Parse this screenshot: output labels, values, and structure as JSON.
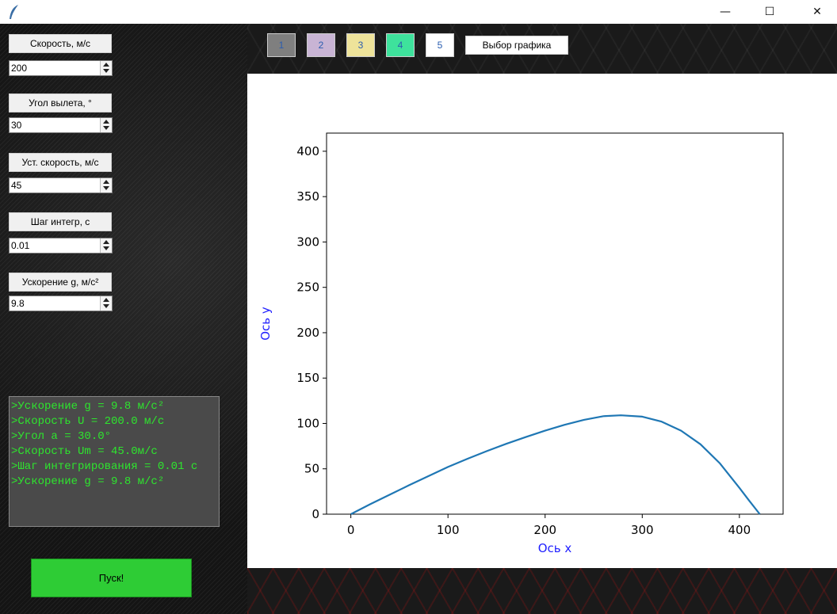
{
  "window": {
    "app_icon": "feather-icon",
    "controls": {
      "minimize": "—",
      "maximize": "☐",
      "close": "✕"
    }
  },
  "params": [
    {
      "label": "Скорость, м/с",
      "value": "200"
    },
    {
      "label": "Угол вылета, °",
      "value": "30"
    },
    {
      "label": "Уст. скорость, м/с",
      "value": "45"
    },
    {
      "label": "Шаг интегр, с",
      "value": "0.01"
    },
    {
      "label": "Ускорение g, м/с²",
      "value": "9.8"
    }
  ],
  "console": {
    "lines": [
      ">Ускорение g = 9.8 м/с²",
      ">Скорость U = 200.0 м/с",
      ">Угол a = 30.0°",
      ">Скорость Um = 45.0м/с",
      ">Шаг интегрирования = 0.01 с",
      ">Ускорение g = 9.8 м/с²"
    ],
    "text_color": "#2ee52e"
  },
  "run_button": {
    "label": "Пуск!",
    "color": "#2ecc35"
  },
  "graph_buttons": [
    {
      "label": "1",
      "color": "#7f7f7f"
    },
    {
      "label": "2",
      "color": "#c8b4d4"
    },
    {
      "label": "3",
      "color": "#eee39a"
    },
    {
      "label": "4",
      "color": "#3ee29c"
    },
    {
      "label": "5",
      "color": "#ffffff"
    }
  ],
  "select_graph_label": "Выбор графика",
  "chart_data": {
    "type": "line",
    "title": "",
    "xlabel": "Ось x",
    "ylabel": "Ось y",
    "xlim": [
      -25,
      445
    ],
    "ylim": [
      0,
      420
    ],
    "xticks": [
      0,
      100,
      200,
      300,
      400
    ],
    "yticks": [
      0,
      50,
      100,
      150,
      200,
      250,
      300,
      350,
      400
    ],
    "series": [
      {
        "color": "#1f77b4",
        "x": [
          0,
          20,
          40,
          60,
          80,
          100,
          120,
          140,
          160,
          180,
          200,
          220,
          240,
          260,
          278,
          300,
          320,
          340,
          360,
          380,
          400,
          410,
          421
        ],
        "y": [
          0,
          11,
          21.5,
          32,
          42,
          52,
          61,
          69.5,
          77.5,
          85,
          92,
          98.5,
          104,
          108,
          109,
          107.5,
          102,
          92,
          77,
          56,
          29,
          15,
          0
        ]
      }
    ]
  }
}
